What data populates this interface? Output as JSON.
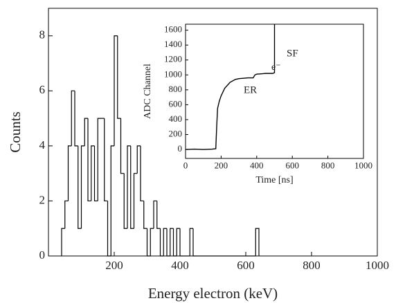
{
  "chart_data": [
    {
      "type": "histogram",
      "xlabel": "Energy electron (keV)",
      "ylabel": "Counts",
      "bins": [
        40,
        50,
        60,
        70,
        80,
        90,
        100,
        110,
        120,
        130,
        140,
        150,
        160,
        170,
        180,
        190,
        200,
        210,
        220,
        230,
        240,
        250,
        260,
        270,
        280,
        290,
        300,
        310,
        320,
        330,
        340,
        350,
        360,
        370,
        380,
        390,
        400,
        410,
        420,
        430,
        440,
        450,
        460,
        470,
        480,
        490,
        500,
        510,
        520,
        530,
        540,
        550,
        560,
        570,
        580,
        590,
        600,
        610,
        620,
        630,
        640
      ],
      "values": [
        1,
        2,
        4,
        6,
        4,
        1,
        4,
        5,
        2,
        4,
        2,
        5,
        5,
        2,
        0,
        4,
        8,
        5,
        3,
        1,
        4,
        1,
        3,
        4,
        2,
        1,
        0,
        1,
        2,
        1,
        0,
        1,
        0,
        1,
        0,
        1,
        0,
        0,
        0,
        1,
        0,
        0,
        0,
        0,
        0,
        0,
        0,
        0,
        0,
        0,
        0,
        0,
        0,
        0,
        0,
        0,
        0,
        0,
        0,
        1
      ],
      "color": "#000000",
      "xlim": [
        0,
        1000
      ],
      "xticks": [
        200,
        400,
        600,
        800,
        1000
      ],
      "ylim": [
        0,
        9
      ],
      "yticks": [
        0,
        2,
        4,
        6,
        8
      ]
    },
    {
      "type": "line",
      "xlabel": "Time [ns]",
      "ylabel": "ADC Channel",
      "x": [
        0,
        50,
        100,
        150,
        170,
        175,
        180,
        190,
        200,
        220,
        250,
        280,
        300,
        350,
        380,
        390,
        400,
        450,
        490,
        500,
        500
      ],
      "values": [
        0,
        5,
        0,
        5,
        10,
        300,
        550,
        650,
        720,
        820,
        900,
        940,
        950,
        960,
        960,
        1000,
        1010,
        1020,
        1020,
        1030,
        1680
      ],
      "color": "#000000",
      "annotations": [
        "ER",
        "e⁻",
        "SF"
      ],
      "xlim": [
        0,
        1000
      ],
      "xticks": [
        0,
        200,
        400,
        600,
        800,
        1000
      ],
      "ylim": [
        -120,
        1680
      ],
      "yticks": [
        0,
        200,
        400,
        600,
        800,
        1000,
        1200,
        1400,
        1600
      ]
    }
  ]
}
